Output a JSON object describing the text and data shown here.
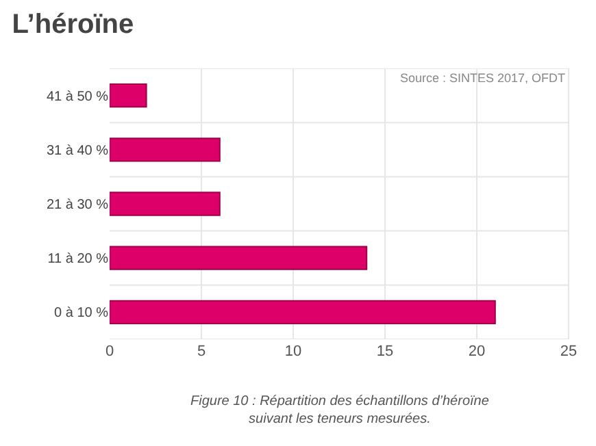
{
  "chart_data": {
    "type": "bar",
    "orientation": "horizontal",
    "title": "L’héroïne",
    "categories": [
      "41 à 50 %",
      "31 à 40 %",
      "21 à 30 %",
      "11 à 20 %",
      "0 à 10 %"
    ],
    "values": [
      2,
      6,
      6,
      14,
      21
    ],
    "color": "#dd0068",
    "xlim": [
      0,
      25
    ],
    "xticks": [
      0,
      5,
      10,
      15,
      20,
      25
    ],
    "grid": true,
    "annotations": [
      "Source : SINTES 2017, OFDT",
      "Figure 10 : Répartition des échantillons d’héroïne\nsuivant les teneurs mesurées."
    ]
  }
}
